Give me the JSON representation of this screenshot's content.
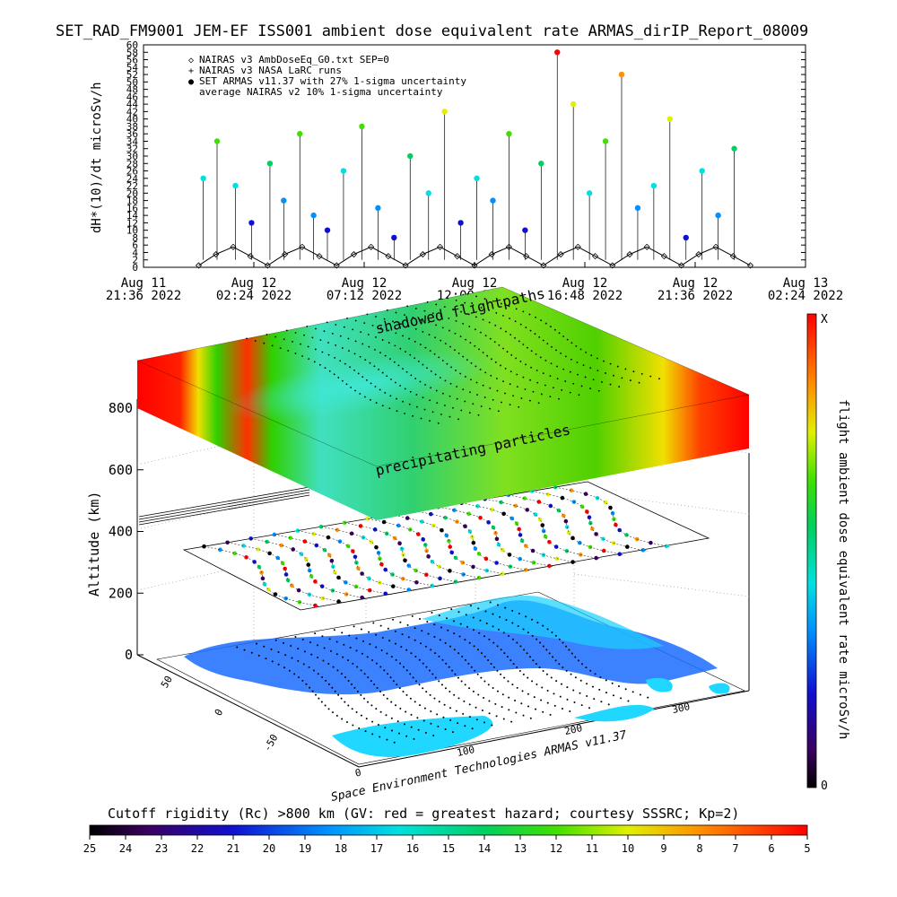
{
  "chart_data": [
    {
      "type": "scatter",
      "title": "SET_RAD_FM9001  JEM-EF ISS001 ambient dose equivalent rate ARMAS_dirIP_Report_08009",
      "ylabel": "dH*(10)/dt microSv/h",
      "ylim": [
        0,
        60
      ],
      "y_ticks": [
        "0",
        "2",
        "4",
        "6",
        "8",
        "10",
        "12",
        "14",
        "16",
        "18",
        "20",
        "22",
        "24",
        "26",
        "28",
        "30",
        "32",
        "34",
        "36",
        "38",
        "40",
        "42",
        "44",
        "46",
        "48",
        "50",
        "52",
        "54",
        "56",
        "58",
        "60"
      ],
      "x_ticks": [
        {
          "date": "Aug 11",
          "time": "21:36 2022"
        },
        {
          "date": "Aug 12",
          "time": "02:24 2022"
        },
        {
          "date": "Aug 12",
          "time": "07:12 2022"
        },
        {
          "date": "Aug 12",
          "time": "12:00 2022"
        },
        {
          "date": "Aug 12",
          "time": "16:48 2022"
        },
        {
          "date": "Aug 12",
          "time": "21:36 2022"
        },
        {
          "date": "Aug 13",
          "time": "02:24 2022"
        }
      ],
      "xlim": [
        "2022-08-11T21:36",
        "2022-08-13T02:24"
      ],
      "data_span": [
        "2022-08-12T00:00",
        "2022-08-13T00:00"
      ],
      "legend": [
        {
          "symbol": "◇",
          "label": "NAIRAS v3 AmbDoseEq_G0.txt SEP=0",
          "color": "#000000"
        },
        {
          "symbol": "+",
          "label": "NAIRAS v3 NASA LaRC runs",
          "color": "#000000"
        },
        {
          "symbol": "●",
          "label": "SET ARMAS v11.37 with 27% 1-sigma uncertainty",
          "color": "#0000ff"
        },
        {
          "symbol": "",
          "label": "average NAIRAS v2 10% 1-sigma uncertainty",
          "color": "#000000"
        }
      ],
      "legend_position": "top-left",
      "series": [
        {
          "name": "NAIRAS v3 AmbDoseEq_G0.txt SEP=0",
          "x_hours_from_2022-08-12T00:00": [
            0.0,
            0.75,
            1.5,
            2.25,
            3.0,
            3.75,
            4.5,
            5.25,
            6.0,
            6.75,
            7.5,
            8.25,
            9.0,
            9.75,
            10.5,
            11.25,
            12.0,
            12.75,
            13.5,
            14.25,
            15.0,
            15.75,
            16.5,
            17.25,
            18.0,
            18.75,
            19.5,
            20.25,
            21.0,
            21.75,
            22.5,
            23.25,
            24.0
          ],
          "values": [
            0.5,
            3.5,
            5.5,
            3.0,
            0.5,
            3.5,
            5.5,
            3.0,
            0.5,
            3.5,
            5.5,
            3.0,
            0.5,
            3.5,
            5.5,
            3.0,
            0.5,
            3.5,
            5.5,
            3.0,
            0.5,
            3.5,
            5.5,
            3.0,
            0.5,
            3.5,
            5.5,
            3.0,
            0.5,
            3.5,
            5.5,
            3.0,
            0.5
          ]
        },
        {
          "name": "SET ARMAS v11.37 with 27% 1-sigma uncertainty",
          "x_hours_from_2022-08-12T00:00": [
            0.2,
            0.8,
            1.6,
            2.3,
            3.1,
            3.7,
            4.4,
            5.0,
            5.6,
            6.3,
            7.1,
            7.8,
            8.5,
            9.2,
            10.0,
            10.7,
            11.4,
            12.1,
            12.8,
            13.5,
            14.2,
            14.9,
            15.6,
            16.3,
            17.0,
            17.7,
            18.4,
            19.1,
            19.8,
            20.5,
            21.2,
            21.9,
            22.6,
            23.3
          ],
          "values": [
            24,
            34,
            22,
            12,
            28,
            18,
            36,
            14,
            10,
            26,
            38,
            16,
            8,
            30,
            20,
            42,
            12,
            24,
            18,
            36,
            10,
            28,
            58,
            44,
            20,
            34,
            52,
            16,
            22,
            40,
            8,
            26,
            14,
            32
          ]
        }
      ]
    },
    {
      "type": "heatmap",
      "title": "",
      "xlabel": "",
      "ylabel": "Altitude (km)",
      "zlim": [
        0,
        800
      ],
      "z_ticks": [
        "0",
        "200",
        "400",
        "600",
        "800"
      ],
      "lat_ticks": [
        "-50",
        "0",
        "50"
      ],
      "lon_ticks": [
        "0",
        "100",
        "200",
        "300"
      ],
      "annotations": [
        "shadowed flightpaths",
        "precipitating particles"
      ],
      "credit": "Space Environment Technologies ARMAS v11.37",
      "colorbar_right": {
        "label": "flight ambient dose equivalent rate microSv/h",
        "top_label": "X",
        "bottom_label": "0"
      },
      "colorbar_bottom": {
        "label": "Cutoff rigidity (Rc) >800 km (GV: red = greatest hazard; courtesy SSSRC; Kp=2)",
        "ticks": [
          "25",
          "24",
          "23",
          "22",
          "21",
          "20",
          "19",
          "18",
          "17",
          "16",
          "15",
          "14",
          "13",
          "12",
          "11",
          "10",
          "9",
          "8",
          "7",
          "6",
          "5"
        ]
      }
    }
  ]
}
